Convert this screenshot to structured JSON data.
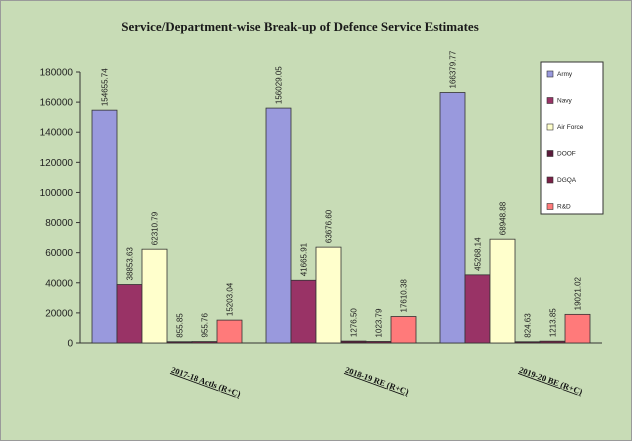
{
  "chart_data": {
    "type": "bar",
    "title": "Service/Department-wise Break-up of Defence  Service Estimates",
    "categories": [
      "2017-18 Actls (R+C)",
      "2018-19 RE (R+C)",
      "2019-20 BE (R+C)"
    ],
    "ylim": [
      0,
      180000
    ],
    "yticks": [
      0,
      20000,
      40000,
      60000,
      80000,
      100000,
      120000,
      140000,
      160000,
      180000
    ],
    "series": [
      {
        "name": "Army",
        "color": "#9999dd",
        "values": [
          154655.74,
          156029.05,
          166379.77
        ],
        "labels": [
          "154655.74",
          "156029.05",
          "166379.77"
        ]
      },
      {
        "name": "Navy",
        "color": "#993366",
        "values": [
          38853.63,
          41665.91,
          45268.14
        ],
        "labels": [
          "38853.63",
          "41665.91",
          "45268.14"
        ]
      },
      {
        "name": "Air Force",
        "color": "#ffffcc",
        "values": [
          62310.79,
          63676.6,
          68948.88
        ],
        "labels": [
          "62310.79",
          "63676.60",
          "68948.88"
        ]
      },
      {
        "name": "DOOF",
        "color": "#5a1a3a",
        "values": [
          855.85,
          1276.5,
          824.63
        ],
        "labels": [
          "855.85",
          "1276.50",
          "824.63"
        ]
      },
      {
        "name": "DGQA",
        "color": "#7a2046",
        "values": [
          955.76,
          1023.79,
          1213.85
        ],
        "labels": [
          "955.76",
          "1023.79",
          "1213.85"
        ]
      },
      {
        "name": "R&D",
        "color": "#ff7a7a",
        "values": [
          15203.04,
          17610.38,
          19021.02
        ],
        "labels": [
          "15203.04",
          "17610.38",
          "19021.02"
        ]
      }
    ],
    "legend": "top-right",
    "grid": false
  }
}
